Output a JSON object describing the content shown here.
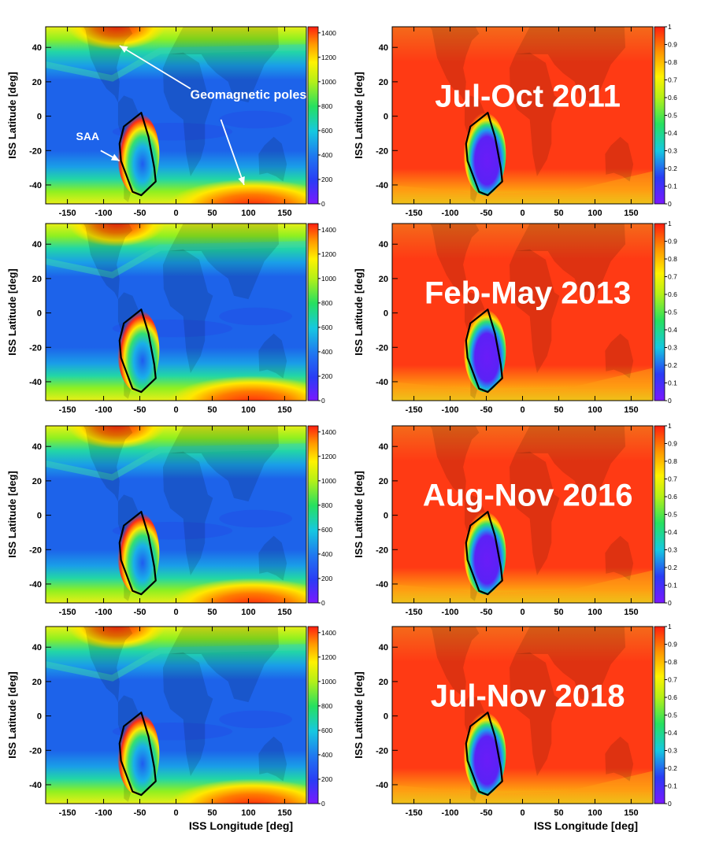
{
  "figure": {
    "x_axis_label": "ISS Longitude [deg]",
    "y_axis_label": "ISS Latitude [deg]"
  },
  "chart_data": [
    {
      "type": "heatmap",
      "panel": "rate-2011",
      "period": "",
      "xlim": [
        -180,
        180
      ],
      "ylim": [
        -51,
        52
      ],
      "x_ticks": [
        "-150",
        "-100",
        "-50",
        "0",
        "50",
        "100",
        "150"
      ],
      "y_ticks": [
        "40",
        "20",
        "0",
        "-20",
        "-40"
      ],
      "colorbar": {
        "range": [
          0,
          1450
        ],
        "ticks": [
          "1400",
          "1200",
          "1000",
          "800",
          "600",
          "400",
          "200",
          "0"
        ]
      },
      "palette": "rate",
      "annotations": [
        {
          "text": "Geomagnetic poles",
          "kind": "label",
          "x": 100,
          "y": 10
        },
        {
          "text": "SAA",
          "kind": "label",
          "x": -122,
          "y": -14
        }
      ],
      "arrows": [
        {
          "from": [
            20,
            16
          ],
          "to": [
            -78,
            41
          ]
        },
        {
          "from": [
            62,
            -2
          ],
          "to": [
            94,
            -40
          ]
        },
        {
          "from": [
            -104,
            -20
          ],
          "to": [
            -78,
            -26
          ]
        }
      ],
      "saa_contour": true,
      "continents": true,
      "grid": false
    },
    {
      "type": "heatmap",
      "panel": "livetime-2011",
      "period": "Jul-Oct 2011",
      "xlim": [
        -180,
        180
      ],
      "ylim": [
        -51,
        52
      ],
      "x_ticks": [
        "-150",
        "-100",
        "-50",
        "0",
        "50",
        "100",
        "150"
      ],
      "y_ticks": [
        "40",
        "20",
        "0",
        "-20",
        "-40"
      ],
      "colorbar": {
        "range": [
          0,
          1
        ],
        "ticks": [
          "1",
          "0.9",
          "0.8",
          "0.7",
          "0.6",
          "0.5",
          "0.4",
          "0.3",
          "0.2",
          "0.1",
          "0"
        ]
      },
      "palette": "livetime",
      "saa_contour": true,
      "continents": true,
      "grid": false
    },
    {
      "type": "heatmap",
      "panel": "rate-2013",
      "period": "",
      "xlim": [
        -180,
        180
      ],
      "ylim": [
        -51,
        52
      ],
      "x_ticks": [
        "-150",
        "-100",
        "-50",
        "0",
        "50",
        "100",
        "150"
      ],
      "y_ticks": [
        "40",
        "20",
        "0",
        "-20",
        "-40"
      ],
      "colorbar": {
        "range": [
          0,
          1450
        ],
        "ticks": [
          "1400",
          "1200",
          "1000",
          "800",
          "600",
          "400",
          "200",
          "0"
        ]
      },
      "palette": "rate",
      "saa_contour": true,
      "continents": true,
      "grid": false
    },
    {
      "type": "heatmap",
      "panel": "livetime-2013",
      "period": "Feb-May 2013",
      "xlim": [
        -180,
        180
      ],
      "ylim": [
        -51,
        52
      ],
      "x_ticks": [
        "-150",
        "-100",
        "-50",
        "0",
        "50",
        "100",
        "150"
      ],
      "y_ticks": [
        "40",
        "20",
        "0",
        "-20",
        "-40"
      ],
      "colorbar": {
        "range": [
          0,
          1
        ],
        "ticks": [
          "1",
          "0.9",
          "0.8",
          "0.7",
          "0.6",
          "0.5",
          "0.4",
          "0.3",
          "0.2",
          "0.1",
          "0"
        ]
      },
      "palette": "livetime",
      "saa_contour": true,
      "continents": true,
      "grid": false
    },
    {
      "type": "heatmap",
      "panel": "rate-2016",
      "period": "",
      "xlim": [
        -180,
        180
      ],
      "ylim": [
        -51,
        52
      ],
      "x_ticks": [
        "-150",
        "-100",
        "-50",
        "0",
        "50",
        "100",
        "150"
      ],
      "y_ticks": [
        "40",
        "20",
        "0",
        "-20",
        "-40"
      ],
      "colorbar": {
        "range": [
          0,
          1450
        ],
        "ticks": [
          "1400",
          "1200",
          "1000",
          "800",
          "600",
          "400",
          "200",
          "0"
        ]
      },
      "palette": "rate",
      "saa_contour": true,
      "continents": true,
      "grid": false
    },
    {
      "type": "heatmap",
      "panel": "livetime-2016",
      "period": "Aug-Nov 2016",
      "xlim": [
        -180,
        180
      ],
      "ylim": [
        -51,
        52
      ],
      "x_ticks": [
        "-150",
        "-100",
        "-50",
        "0",
        "50",
        "100",
        "150"
      ],
      "y_ticks": [
        "40",
        "20",
        "0",
        "-20",
        "-40"
      ],
      "colorbar": {
        "range": [
          0,
          1
        ],
        "ticks": [
          "1",
          "0.9",
          "0.8",
          "0.7",
          "0.6",
          "0.5",
          "0.4",
          "0.3",
          "0.2",
          "0.1",
          "0"
        ]
      },
      "palette": "livetime",
      "saa_contour": true,
      "continents": true,
      "grid": false
    },
    {
      "type": "heatmap",
      "panel": "rate-2018",
      "period": "",
      "xlim": [
        -180,
        180
      ],
      "ylim": [
        -51,
        52
      ],
      "x_ticks": [
        "-150",
        "-100",
        "-50",
        "0",
        "50",
        "100",
        "150"
      ],
      "y_ticks": [
        "40",
        "20",
        "0",
        "-20",
        "-40"
      ],
      "colorbar": {
        "range": [
          0,
          1450
        ],
        "ticks": [
          "1400",
          "1200",
          "1000",
          "800",
          "600",
          "400",
          "200",
          "0"
        ]
      },
      "palette": "rate",
      "saa_contour": true,
      "continents": true,
      "grid": false
    },
    {
      "type": "heatmap",
      "panel": "livetime-2018",
      "period": "Jul-Nov 2018",
      "xlim": [
        -180,
        180
      ],
      "ylim": [
        -51,
        52
      ],
      "x_ticks": [
        "-150",
        "-100",
        "-50",
        "0",
        "50",
        "100",
        "150"
      ],
      "y_ticks": [
        "40",
        "20",
        "0",
        "-20",
        "-40"
      ],
      "colorbar": {
        "range": [
          0,
          1
        ],
        "ticks": [
          "1",
          "0.9",
          "0.8",
          "0.7",
          "0.6",
          "0.5",
          "0.4",
          "0.3",
          "0.2",
          "0.1",
          "0"
        ]
      },
      "palette": "livetime",
      "saa_contour": true,
      "continents": true,
      "grid": false
    }
  ],
  "colors": {
    "saa_contour": "#000000",
    "annotation_text": "#ffffff",
    "period_text": "#ffffff",
    "axis": "#000000"
  }
}
